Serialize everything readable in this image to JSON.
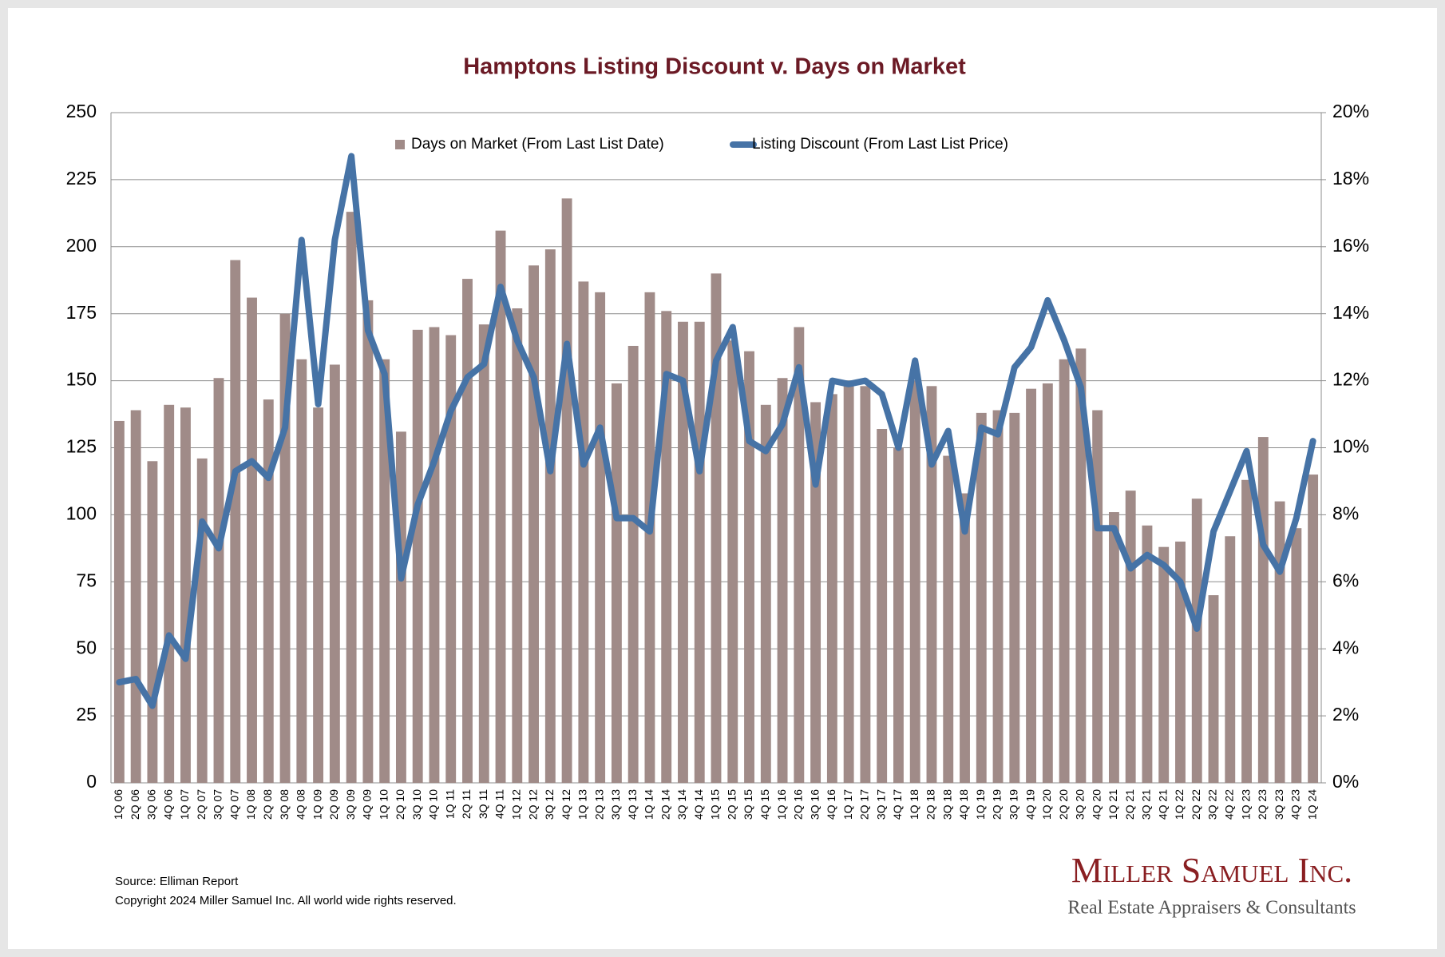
{
  "chart_data": {
    "type": "bar",
    "title": "Hamptons Listing Discount v. Days on Market",
    "categories": [
      "1Q 06",
      "2Q 06",
      "3Q 06",
      "4Q 06",
      "1Q 07",
      "2Q 07",
      "3Q 07",
      "4Q 07",
      "1Q 08",
      "2Q 08",
      "3Q 08",
      "4Q 08",
      "1Q 09",
      "2Q 09",
      "3Q 09",
      "4Q 09",
      "1Q 10",
      "2Q 10",
      "3Q 10",
      "4Q 10",
      "1Q 11",
      "2Q 11",
      "3Q 11",
      "4Q 11",
      "1Q 12",
      "2Q 12",
      "3Q 12",
      "4Q 12",
      "1Q 13",
      "2Q 13",
      "3Q 13",
      "4Q 13",
      "1Q 14",
      "2Q 14",
      "3Q 14",
      "4Q 14",
      "1Q 15",
      "2Q 15",
      "3Q 15",
      "4Q 15",
      "1Q 16",
      "2Q 16",
      "3Q 16",
      "4Q 16",
      "1Q 17",
      "2Q 17",
      "3Q 17",
      "4Q 17",
      "1Q 18",
      "2Q 18",
      "3Q 18",
      "4Q 18",
      "1Q 19",
      "2Q 19",
      "3Q 19",
      "4Q 19",
      "1Q 20",
      "2Q 20",
      "3Q 20",
      "4Q 20",
      "1Q 21",
      "2Q 21",
      "3Q 21",
      "4Q 21",
      "1Q 22",
      "2Q 22",
      "3Q 22",
      "4Q 22",
      "1Q 23",
      "2Q 23",
      "3Q 23",
      "4Q 23",
      "1Q 24"
    ],
    "series": [
      {
        "name": "Days on Market (From Last List Date)",
        "type": "bar",
        "color": "#a08b88",
        "values": [
          135,
          139,
          120,
          141,
          140,
          121,
          151,
          195,
          181,
          143,
          175,
          158,
          140,
          156,
          213,
          180,
          158,
          131,
          169,
          170,
          167,
          188,
          171,
          206,
          177,
          193,
          199,
          218,
          187,
          183,
          149,
          163,
          183,
          176,
          172,
          172,
          190,
          165,
          161,
          141,
          151,
          170,
          142,
          145,
          148,
          148,
          132,
          125,
          150,
          148,
          122,
          108,
          138,
          139,
          138,
          147,
          149,
          158,
          162,
          139,
          101,
          109,
          96,
          88,
          90,
          106,
          70,
          92,
          113,
          129,
          105,
          95,
          115
        ]
      },
      {
        "name": "Listing Discount (From Last List Price)",
        "type": "line",
        "axis": "y2",
        "color": "#4673a6",
        "values": [
          3.0,
          3.1,
          2.3,
          4.4,
          3.7,
          7.8,
          7.0,
          9.3,
          9.6,
          9.1,
          10.6,
          16.2,
          11.3,
          16.2,
          18.7,
          13.5,
          12.2,
          6.1,
          8.3,
          9.6,
          11.1,
          12.1,
          12.5,
          14.8,
          13.2,
          12.1,
          9.3,
          13.1,
          9.5,
          10.6,
          7.9,
          7.9,
          7.5,
          12.2,
          12.0,
          9.3,
          12.6,
          13.6,
          10.2,
          9.9,
          10.7,
          12.4,
          8.9,
          12.0,
          11.9,
          12.0,
          11.6,
          10.0,
          12.6,
          9.5,
          10.5,
          7.5,
          10.6,
          10.4,
          12.4,
          13.0,
          14.4,
          13.2,
          11.8,
          7.6,
          7.6,
          6.4,
          6.8,
          6.5,
          6.0,
          4.6,
          7.5,
          8.7,
          9.9,
          7.1,
          6.3,
          7.9,
          10.2
        ]
      }
    ],
    "ylim": [
      0,
      250
    ],
    "yticks": [
      0,
      25,
      50,
      75,
      100,
      125,
      150,
      175,
      200,
      225,
      250
    ],
    "y2lim": [
      0,
      20
    ],
    "y2ticks": [
      {
        "value": 0,
        "label": "0%"
      },
      {
        "value": 2,
        "label": "2%"
      },
      {
        "value": 4,
        "label": "4%"
      },
      {
        "value": 6,
        "label": "6%"
      },
      {
        "value": 8,
        "label": "8%"
      },
      {
        "value": 10,
        "label": "10%"
      },
      {
        "value": 12,
        "label": "12%"
      },
      {
        "value": 14,
        "label": "14%"
      },
      {
        "value": 16,
        "label": "16%"
      },
      {
        "value": 18,
        "label": "18%"
      },
      {
        "value": 20,
        "label": "20%"
      }
    ],
    "grid": true,
    "legend": "top"
  },
  "footer": {
    "source": "Source: Elliman Report",
    "copyright": "Copyright 2024 Miller Samuel Inc.  All world wide rights reserved."
  },
  "logo": {
    "name": "Miller Samuel Inc.",
    "tagline": "Real Estate Appraisers & Consultants"
  }
}
